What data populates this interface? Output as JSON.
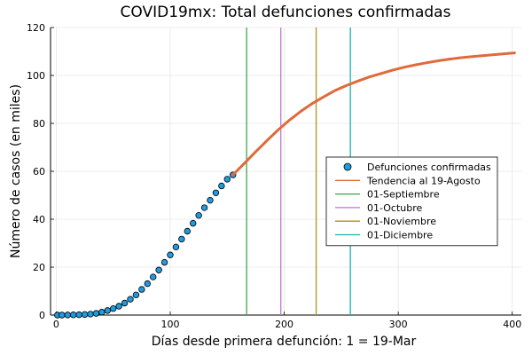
{
  "chart_data": {
    "type": "scatter",
    "title": "COVID19mx: Total defunciones confirmadas",
    "xlabel": "Días desde primera defunción: 1 = 19-Mar",
    "ylabel": "Número de casos (en miles)",
    "xlim": [
      -5,
      408
    ],
    "ylim": [
      0,
      120
    ],
    "xticks": [
      0,
      100,
      200,
      300,
      400
    ],
    "yticks": [
      0,
      20,
      40,
      60,
      80,
      100,
      120
    ],
    "grid": true,
    "legend_position": "right",
    "series": [
      {
        "name": "Defunciones confirmadas",
        "kind": "scatter",
        "color": "#1f9be0",
        "x": [
          1,
          5,
          10,
          15,
          20,
          25,
          30,
          35,
          40,
          45,
          50,
          55,
          60,
          65,
          70,
          75,
          80,
          85,
          90,
          95,
          100,
          105,
          110,
          115,
          120,
          125,
          130,
          135,
          140,
          145,
          150,
          155
        ],
        "y": [
          0,
          0,
          0.05,
          0.1,
          0.15,
          0.25,
          0.4,
          0.7,
          1.2,
          1.9,
          2.7,
          3.7,
          5.0,
          6.6,
          8.4,
          10.7,
          13.1,
          15.9,
          18.8,
          22.0,
          25.1,
          28.4,
          31.7,
          35.0,
          38.3,
          41.6,
          44.8,
          47.9,
          51.0,
          53.9,
          56.7,
          58.5
        ]
      },
      {
        "name": "Tendencia al 19-Agosto",
        "kind": "line",
        "color": "#e06a3c",
        "x": [
          155,
          165,
          175,
          185,
          195,
          205,
          215,
          225,
          235,
          245,
          255,
          265,
          275,
          285,
          295,
          305,
          315,
          325,
          335,
          345,
          355,
          365,
          375,
          385,
          395,
          402
        ],
        "y": [
          58.5,
          63.3,
          68.2,
          72.9,
          77.4,
          81.5,
          85.2,
          88.4,
          91.2,
          93.8,
          95.9,
          97.7,
          99.4,
          100.8,
          102.2,
          103.4,
          104.4,
          105.3,
          106.1,
          106.8,
          107.4,
          107.9,
          108.3,
          108.7,
          109.1,
          109.4
        ]
      }
    ],
    "vlines": [
      {
        "name": "01-Septiembre",
        "x": 167,
        "color": "#3da64a"
      },
      {
        "name": "01-Octubre",
        "x": 197,
        "color": "#c276d9"
      },
      {
        "name": "01-Noviembre",
        "x": 228,
        "color": "#b2911d"
      },
      {
        "name": "01-Diciembre",
        "x": 258,
        "color": "#17b3b3"
      }
    ]
  }
}
